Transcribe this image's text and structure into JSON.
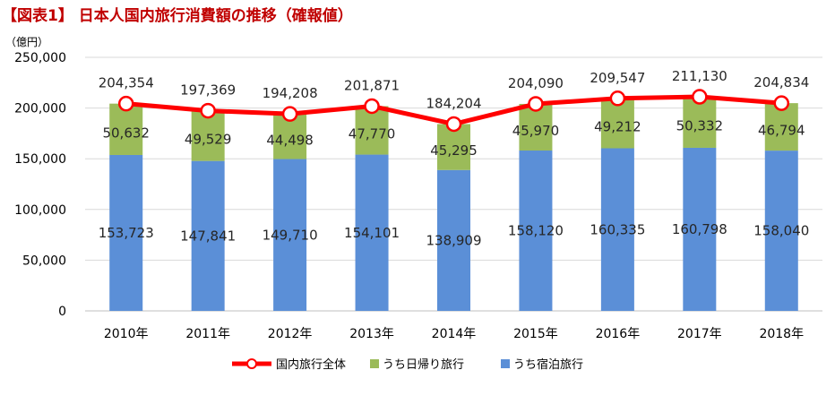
{
  "chart_data": {
    "type": "bar",
    "title": "【図表1】 日本人国内旅行消費額の推移（確報値）",
    "unit_label": "（億円）",
    "categories": [
      "2010年",
      "2011年",
      "2012年",
      "2013年",
      "2014年",
      "2015年",
      "2016年",
      "2017年",
      "2018年"
    ],
    "series": [
      {
        "name": "うち宿泊旅行",
        "kind": "stacked-bar",
        "color": "#5b8fd7",
        "values": [
          153723,
          147841,
          149710,
          154101,
          138909,
          158120,
          160335,
          160798,
          158040
        ]
      },
      {
        "name": "うち日帰り旅行",
        "kind": "stacked-bar",
        "color": "#9bbb59",
        "values": [
          50632,
          49529,
          44498,
          47770,
          45295,
          45970,
          49212,
          50332,
          46794
        ]
      },
      {
        "name": "国内旅行全体",
        "kind": "line",
        "color": "#ff0000",
        "values": [
          204354,
          197369,
          194208,
          201871,
          184204,
          204090,
          209547,
          211130,
          204834
        ]
      }
    ],
    "value_labels": {
      "total": [
        "204,354",
        "197,369",
        "194,208",
        "201,871",
        "184,204",
        "204,090",
        "209,547",
        "211,130",
        "204,834"
      ],
      "daytrip": [
        "50,632",
        "49,529",
        "44,498",
        "47,770",
        "45,295",
        "45,970",
        "49,212",
        "50,332",
        "46,794"
      ],
      "overnight": [
        "153,723",
        "147,841",
        "149,710",
        "154,101",
        "138,909",
        "158,120",
        "160,335",
        "160,798",
        "158,040"
      ]
    },
    "yticks": [
      0,
      50000,
      100000,
      150000,
      200000,
      250000
    ],
    "ytick_labels": [
      "0",
      "50,000",
      "100,000",
      "150,000",
      "200,000",
      "250,000"
    ],
    "ylim": [
      0,
      250000
    ],
    "grid": true,
    "legend_position": "bottom",
    "legend": [
      {
        "label": "国内旅行全体",
        "marker": "line-with-circle",
        "color": "#ff0000"
      },
      {
        "label": "うち日帰り旅行",
        "marker": "square",
        "color": "#9bbb59"
      },
      {
        "label": "うち宿泊旅行",
        "marker": "square",
        "color": "#5b8fd7"
      }
    ]
  }
}
